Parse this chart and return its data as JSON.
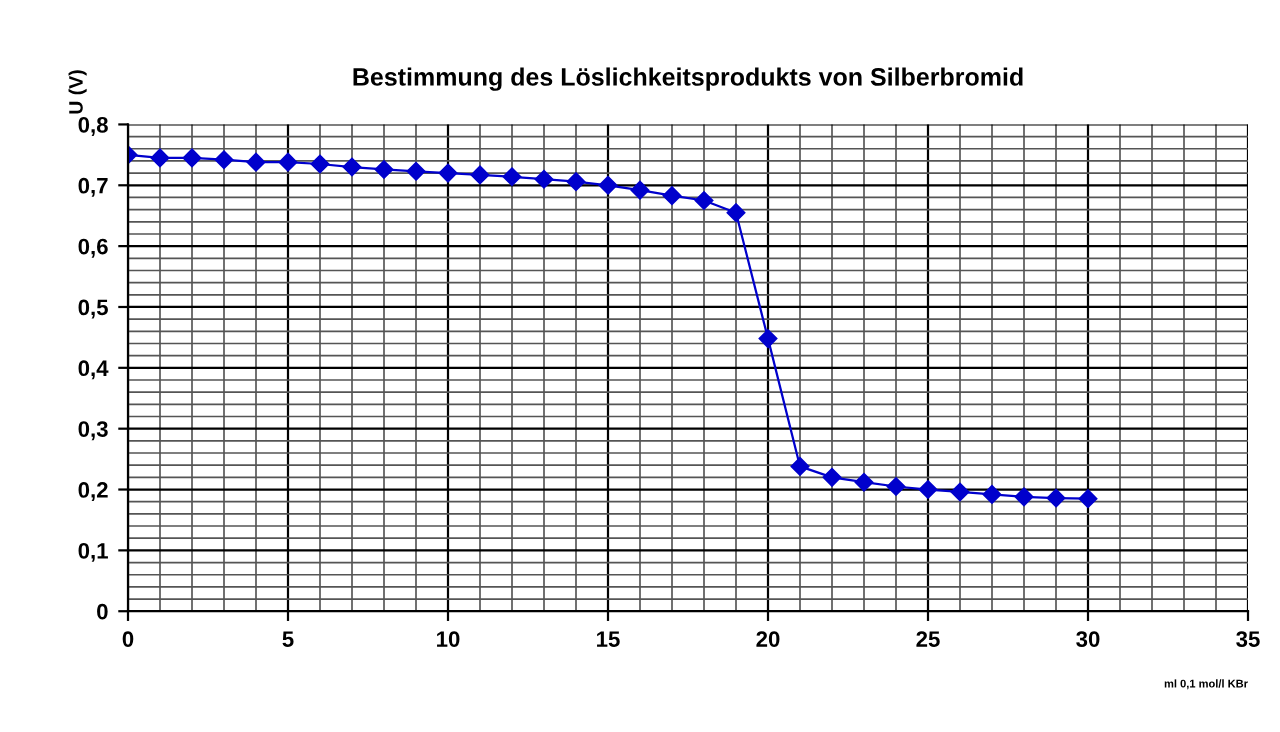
{
  "chart_data": {
    "type": "line",
    "title": "Bestimmung des Löslichkeitsprodukts von Silberbromid",
    "xlabel": "ml 0,1 mol/l KBr",
    "ylabel": "U (V)",
    "x": [
      0,
      1,
      2,
      3,
      4,
      5,
      6,
      7,
      8,
      9,
      10,
      11,
      12,
      13,
      14,
      15,
      16,
      17,
      18,
      19,
      20,
      21,
      22,
      23,
      24,
      25,
      26,
      27,
      28,
      29,
      30
    ],
    "series": [
      {
        "color": "#0000cc",
        "values": [
          0.75,
          0.745,
          0.745,
          0.742,
          0.738,
          0.738,
          0.735,
          0.73,
          0.726,
          0.723,
          0.72,
          0.717,
          0.714,
          0.71,
          0.706,
          0.7,
          0.692,
          0.683,
          0.675,
          0.655,
          0.448,
          0.238,
          0.22,
          0.212,
          0.205,
          0.2,
          0.196,
          0.192,
          0.188,
          0.186,
          0.185
        ]
      }
    ],
    "xlim": [
      0,
      35
    ],
    "xticks": [
      0,
      5,
      10,
      15,
      20,
      25,
      30,
      35
    ],
    "ylim": [
      0,
      0.8
    ],
    "yticks": [
      {
        "value": 0,
        "label": "0"
      },
      {
        "value": 0.1,
        "label": "0,1"
      },
      {
        "value": 0.2,
        "label": "0,2"
      },
      {
        "value": 0.3,
        "label": "0,3"
      },
      {
        "value": 0.4,
        "label": "0,4"
      },
      {
        "value": 0.5,
        "label": "0,5"
      },
      {
        "value": 0.6,
        "label": "0,6"
      },
      {
        "value": 0.7,
        "label": "0,7"
      },
      {
        "value": 0.8,
        "label": "0,8"
      }
    ],
    "grid": true,
    "marker": "diamond",
    "line_style": "solid",
    "legend": false
  }
}
